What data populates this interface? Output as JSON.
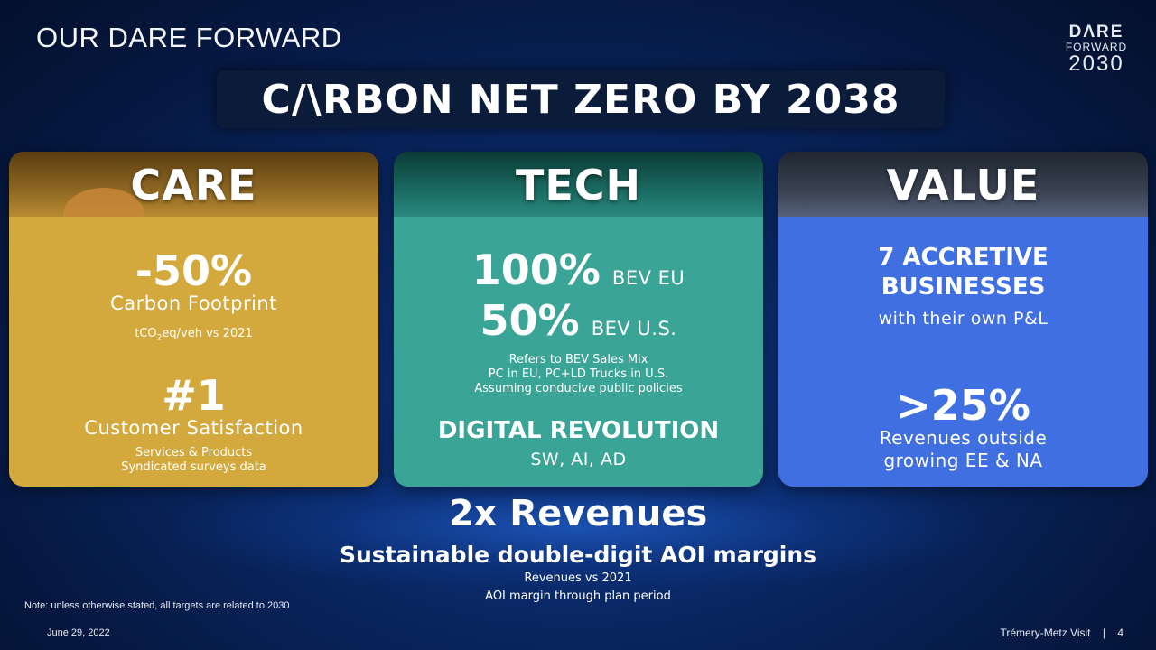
{
  "header": {
    "title": "OUR DARE FORWARD"
  },
  "logo": {
    "line1": "DΛRE",
    "line2": "FORWARD",
    "line3": "2030"
  },
  "banner": {
    "title": "C/\\RBON NET ZERO BY 2038"
  },
  "cards": {
    "care": {
      "title": "CARE",
      "stat1": "-50%",
      "stat1_label": "Carbon Footprint",
      "stat1_note_a": "tCO",
      "stat1_note_sub": "2",
      "stat1_note_b": "eq/veh vs 2021",
      "stat2": "#1",
      "stat2_label": "Customer Satisfaction",
      "stat2_note1": "Services & Products",
      "stat2_note2": "Syndicated surveys data"
    },
    "tech": {
      "title": "TECH",
      "stat1": "100%",
      "stat1_label": "BEV EU",
      "stat2": "50%",
      "stat2_label": "BEV U.S.",
      "note1": "Refers to BEV Sales Mix",
      "note2": "PC in EU, PC+LD Trucks in U.S.",
      "note3": "Assuming conducive public policies",
      "digital_title": "DIGITAL REVOLUTION",
      "digital_sub": "SW, AI, AD"
    },
    "value": {
      "title": "VALUE",
      "headline1": "7 ACCRETIVE",
      "headline2": "BUSINESSES",
      "headline_sub": "with their own P&L",
      "stat": ">25%",
      "stat_label1": "Revenues outside",
      "stat_label2": "growing EE & NA"
    }
  },
  "revenues": {
    "title": "2x Revenues",
    "subtitle": "Sustainable double-digit AOI margins",
    "note1": "Revenues vs 2021",
    "note2": "AOI margin through plan period"
  },
  "footer": {
    "note": "Note:  unless otherwise stated, all targets are related to 2030",
    "date": "June 29, 2022",
    "event": "Trémery-Metz Visit",
    "separator": "|",
    "page": "4"
  },
  "colors": {
    "background": "#0a2a6a",
    "care": "#d3a93e",
    "tech": "#3aa497",
    "value": "#3f6fe0",
    "banner": "#0b1b3a"
  }
}
